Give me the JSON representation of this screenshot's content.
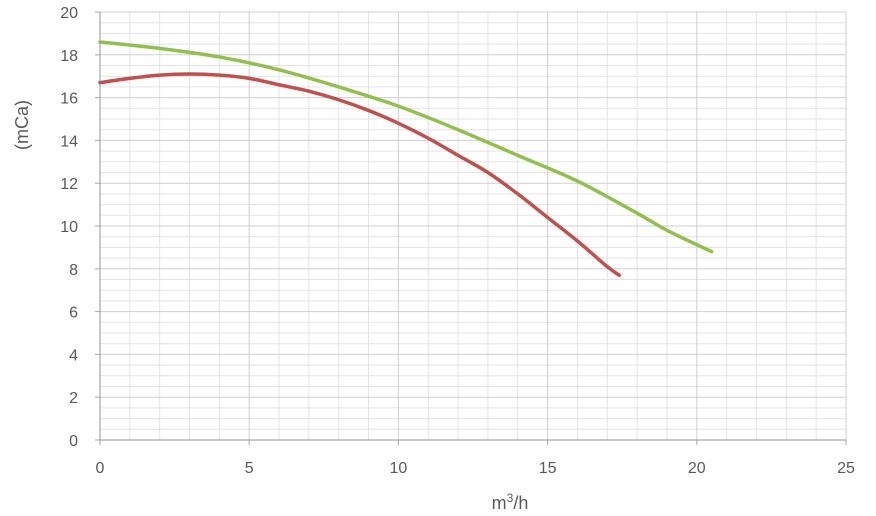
{
  "chart_data": {
    "type": "line",
    "title": "",
    "xlabel": "m³/h",
    "ylabel": "(mCa)",
    "xlim": [
      0,
      25
    ],
    "ylim": [
      0,
      20
    ],
    "x_ticks": [
      "0",
      "5",
      "10",
      "15",
      "20",
      "25"
    ],
    "y_ticks": [
      "0",
      "2",
      "4",
      "6",
      "8",
      "10",
      "12",
      "14",
      "16",
      "18",
      "20"
    ],
    "grid": true,
    "legend": "none",
    "series": [
      {
        "color": "#92bf4e",
        "points": [
          [
            0,
            18.6
          ],
          [
            2,
            18.3
          ],
          [
            4,
            17.9
          ],
          [
            6,
            17.3
          ],
          [
            8,
            16.5
          ],
          [
            10,
            15.6
          ],
          [
            12,
            14.5
          ],
          [
            14,
            13.3
          ],
          [
            16,
            12.1
          ],
          [
            18,
            10.6
          ],
          [
            19,
            9.8
          ],
          [
            20.5,
            8.8
          ]
        ]
      },
      {
        "color": "#c0504d",
        "points": [
          [
            0,
            16.7
          ],
          [
            1,
            16.9
          ],
          [
            2,
            17.05
          ],
          [
            3,
            17.1
          ],
          [
            4,
            17.05
          ],
          [
            5,
            16.9
          ],
          [
            6,
            16.6
          ],
          [
            7,
            16.3
          ],
          [
            8,
            15.9
          ],
          [
            9,
            15.4
          ],
          [
            10,
            14.8
          ],
          [
            11,
            14.1
          ],
          [
            12,
            13.3
          ],
          [
            13,
            12.5
          ],
          [
            14,
            11.5
          ],
          [
            15,
            10.4
          ],
          [
            16,
            9.3
          ],
          [
            17,
            8.1
          ],
          [
            17.4,
            7.7
          ]
        ]
      }
    ]
  }
}
